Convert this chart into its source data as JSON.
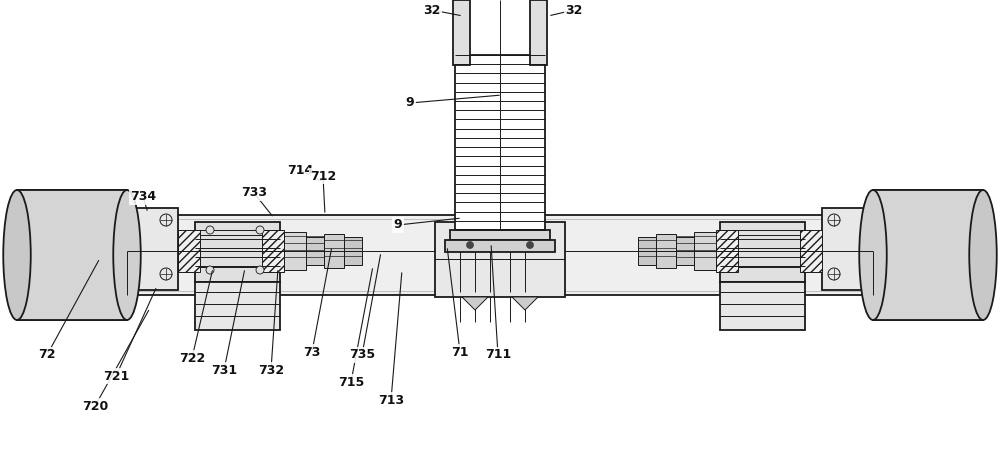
{
  "bg_color": "#ffffff",
  "line_color": "#1a1a1a",
  "fig_w": 10.0,
  "fig_h": 4.68,
  "dpi": 100,
  "annotations": [
    [
      "32",
      463,
      16,
      432,
      10
    ],
    [
      "32",
      548,
      16,
      574,
      10
    ],
    [
      "9",
      502,
      95,
      410,
      103
    ],
    [
      "9",
      462,
      218,
      398,
      225
    ],
    [
      "714",
      323,
      182,
      300,
      170
    ],
    [
      "734",
      148,
      213,
      143,
      197
    ],
    [
      "733",
      274,
      218,
      254,
      193
    ],
    [
      "712",
      325,
      215,
      323,
      176
    ],
    [
      "722",
      213,
      268,
      192,
      358
    ],
    [
      "721",
      157,
      286,
      116,
      376
    ],
    [
      "720",
      150,
      308,
      95,
      406
    ],
    [
      "72",
      100,
      258,
      47,
      355
    ],
    [
      "731",
      245,
      268,
      224,
      370
    ],
    [
      "732",
      278,
      268,
      271,
      370
    ],
    [
      "73",
      332,
      246,
      312,
      352
    ],
    [
      "735",
      381,
      252,
      362,
      355
    ],
    [
      "715",
      373,
      266,
      351,
      382
    ],
    [
      "713",
      402,
      270,
      391,
      400
    ],
    [
      "71",
      447,
      246,
      460,
      352
    ],
    [
      "711",
      491,
      243,
      498,
      355
    ]
  ]
}
